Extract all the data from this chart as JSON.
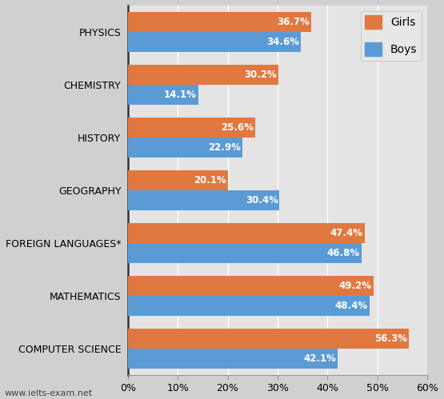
{
  "categories": [
    "PHYSICS",
    "CHEMISTRY",
    "HISTORY",
    "GEOGRAPHY",
    "FOREIGN LANGUAGES*",
    "MATHEMATICS",
    "COMPUTER SCIENCE"
  ],
  "girls": [
    36.7,
    30.2,
    25.6,
    20.1,
    47.4,
    49.2,
    56.3
  ],
  "boys": [
    34.6,
    14.1,
    22.9,
    30.4,
    46.8,
    48.4,
    42.1
  ],
  "girls_color": "#E07840",
  "boys_color": "#5B9BD5",
  "bar_height": 0.38,
  "xlim": [
    0,
    60
  ],
  "xticks": [
    0,
    10,
    20,
    30,
    40,
    50,
    60
  ],
  "xtick_labels": [
    "0%",
    "10%",
    "20%",
    "30%",
    "40%",
    "50%",
    "60%"
  ],
  "label_fontsize": 8.5,
  "tick_label_fontsize": 9,
  "legend_labels": [
    "Girls",
    "Boys"
  ],
  "watermark": "www.ielts-exam.net",
  "background_color": "#D0D0D0",
  "plot_background_color": "#E4E4E4",
  "legend_bg": "#E8E8E8"
}
